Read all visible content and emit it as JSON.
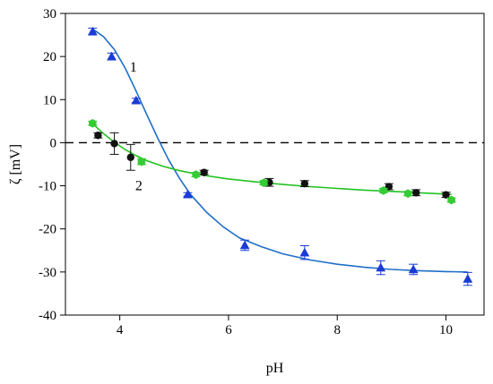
{
  "chart_data": {
    "type": "scatter",
    "xlabel": "pH",
    "ylabel": "ζ [mV]",
    "xlim": [
      3,
      10.7
    ],
    "ylim": [
      -40,
      30
    ],
    "xticks": [
      4,
      6,
      8,
      10
    ],
    "yticks": [
      -40,
      -30,
      -20,
      -10,
      0,
      10,
      20,
      30
    ],
    "grid": false,
    "reference_line": {
      "y": 0,
      "style": "dashed"
    },
    "annotations": [
      {
        "text": "1",
        "x": 4.25,
        "y": 17.5
      },
      {
        "text": "2",
        "x": 4.35,
        "y": -10
      }
    ],
    "series": [
      {
        "marker": "triangle",
        "color": "#1a3bd6",
        "line_color": "#1f6fc8",
        "points": [
          {
            "x": 3.5,
            "y": 25.8,
            "err": 0.8
          },
          {
            "x": 3.85,
            "y": 20.0,
            "err": 0.8
          },
          {
            "x": 4.3,
            "y": 9.8,
            "err": 0.5
          },
          {
            "x": 5.25,
            "y": -12.0,
            "err": 0.4
          },
          {
            "x": 6.3,
            "y": -23.8,
            "err": 1.2
          },
          {
            "x": 7.4,
            "y": -25.5,
            "err": 1.6
          },
          {
            "x": 8.8,
            "y": -29.0,
            "err": 1.6
          },
          {
            "x": 9.4,
            "y": -29.4,
            "err": 1.2
          },
          {
            "x": 10.4,
            "y": -31.6,
            "err": 1.5
          }
        ],
        "fit": [
          [
            3.5,
            26.4
          ],
          [
            3.7,
            24.6
          ],
          [
            3.9,
            21.6
          ],
          [
            4.1,
            17.3
          ],
          [
            4.3,
            12.0
          ],
          [
            4.5,
            6.4
          ],
          [
            4.7,
            1.0
          ],
          [
            4.9,
            -4.0
          ],
          [
            5.1,
            -8.3
          ],
          [
            5.3,
            -12.0
          ],
          [
            5.6,
            -16.2
          ],
          [
            5.9,
            -19.5
          ],
          [
            6.2,
            -22.1
          ],
          [
            6.6,
            -24.1
          ],
          [
            7.0,
            -25.8
          ],
          [
            7.5,
            -27.2
          ],
          [
            8.0,
            -28.2
          ],
          [
            8.5,
            -28.9
          ],
          [
            9.0,
            -29.4
          ],
          [
            9.5,
            -29.7
          ],
          [
            10.0,
            -29.9
          ],
          [
            10.4,
            -30.0
          ]
        ]
      },
      {
        "marker": "circle",
        "color": "#111111",
        "points": [
          {
            "x": 3.6,
            "y": 1.7,
            "err": 0.6
          },
          {
            "x": 3.9,
            "y": -0.2,
            "err": 2.5
          },
          {
            "x": 4.2,
            "y": -3.4,
            "err": 3.0
          },
          {
            "x": 5.55,
            "y": -6.9,
            "err": 0.5
          },
          {
            "x": 6.75,
            "y": -9.2,
            "err": 0.9
          },
          {
            "x": 7.4,
            "y": -9.5,
            "err": 0.7
          },
          {
            "x": 8.95,
            "y": -10.2,
            "err": 0.7
          },
          {
            "x": 9.45,
            "y": -11.6,
            "err": 0.7
          },
          {
            "x": 10.0,
            "y": -12.1,
            "err": 0.6
          }
        ]
      },
      {
        "marker": "hexagon",
        "color": "#33cc33",
        "line_color": "#22c222",
        "points": [
          {
            "x": 3.5,
            "y": 4.5,
            "err": 0.5
          },
          {
            "x": 4.4,
            "y": -4.4,
            "err": 0.7
          },
          {
            "x": 5.4,
            "y": -7.4,
            "err": 0.5
          },
          {
            "x": 6.65,
            "y": -9.3,
            "err": 0.5
          },
          {
            "x": 8.85,
            "y": -11.1,
            "err": 0.5
          },
          {
            "x": 9.3,
            "y": -11.8,
            "err": 0.5
          },
          {
            "x": 10.1,
            "y": -13.3,
            "err": 0.5
          }
        ],
        "fit": [
          [
            3.5,
            4.4
          ],
          [
            3.7,
            2.1
          ],
          [
            3.9,
            0.1
          ],
          [
            4.1,
            -1.6
          ],
          [
            4.3,
            -3.0
          ],
          [
            4.5,
            -4.2
          ],
          [
            4.8,
            -5.5
          ],
          [
            5.1,
            -6.5
          ],
          [
            5.5,
            -7.5
          ],
          [
            6.0,
            -8.4
          ],
          [
            6.5,
            -9.1
          ],
          [
            7.0,
            -9.7
          ],
          [
            7.5,
            -10.2
          ],
          [
            8.0,
            -10.6
          ],
          [
            8.5,
            -11.0
          ],
          [
            9.0,
            -11.3
          ],
          [
            9.5,
            -11.6
          ],
          [
            10.1,
            -12.0
          ]
        ]
      }
    ]
  }
}
